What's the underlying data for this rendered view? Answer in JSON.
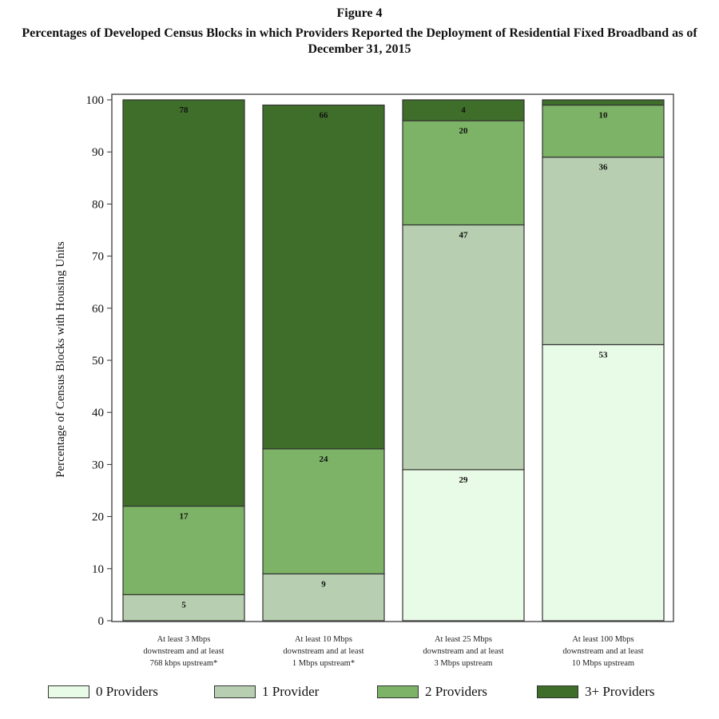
{
  "figure": {
    "label": "Figure 4",
    "title": "Percentages of Developed Census Blocks in which Providers Reported the Deployment of Residential Fixed Broadband as of December 31, 2015"
  },
  "chart_data": {
    "type": "bar",
    "stacked": true,
    "ylabel": "Percentage of Census Blocks with Housing Units",
    "xlabel": "",
    "ylim": [
      0,
      100
    ],
    "yticks": [
      0,
      10,
      20,
      30,
      40,
      50,
      60,
      70,
      80,
      90,
      100
    ],
    "grid": false,
    "legend_position": "bottom",
    "categories": [
      [
        "At least 3 Mbps",
        "downstream and at least",
        "768 kbps upstream*"
      ],
      [
        "At least 10 Mbps",
        "downstream and at least",
        "1 Mbps upstream*"
      ],
      [
        "At least 25 Mbps",
        "downstream and at least",
        "3 Mbps upstream"
      ],
      [
        "At least 100 Mbps",
        "downstream and at least",
        "10 Mbps upstream"
      ]
    ],
    "series": [
      {
        "name": "0 Providers",
        "color": "#e8fbe6",
        "values": [
          0,
          0,
          29,
          53
        ],
        "labels": [
          "",
          "",
          "29",
          "53"
        ]
      },
      {
        "name": "1 Provider",
        "color": "#b7cfb0",
        "values": [
          5,
          9,
          47,
          36
        ],
        "labels": [
          "5",
          "9",
          "47",
          "36"
        ]
      },
      {
        "name": "2 Providers",
        "color": "#7db366",
        "values": [
          17,
          24,
          20,
          10
        ],
        "labels": [
          "17",
          "24",
          "20",
          "10"
        ]
      },
      {
        "name": "3+ Providers",
        "color": "#3f6e2a",
        "values": [
          78,
          66,
          4,
          1
        ],
        "labels": [
          "78",
          "66",
          "4",
          ""
        ]
      }
    ]
  }
}
